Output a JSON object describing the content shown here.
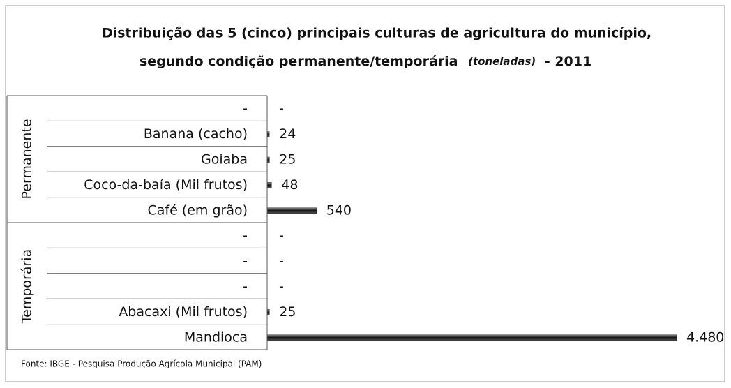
{
  "chart_data": {
    "type": "grouped-bar",
    "title": [
      "Distribuição das 5 (cinco) principais culturas de agricultura do município,",
      "segundo condição permanente/temporária"
    ],
    "unit": "(toneladas)",
    "year_label": "- 2011",
    "color": "#222222",
    "groups": [
      {
        "name": "Permanente",
        "categories": [
          "-",
          "Banana (cacho)",
          "Goiaba",
          "Coco-da-baía (Mil frutos)",
          "Café (em grão)"
        ],
        "values": [
          null,
          24,
          25,
          48,
          540
        ],
        "value_labels": [
          "-",
          "24",
          "25",
          "48",
          "540"
        ]
      },
      {
        "name": "Temporária",
        "categories": [
          "-",
          "-",
          "-",
          "Abacaxi (Mil frutos)",
          "Mandioca"
        ],
        "values": [
          null,
          null,
          null,
          25,
          4480
        ],
        "value_labels": [
          "-",
          "-",
          "-",
          "25",
          "4.480"
        ]
      }
    ],
    "source": "Fonte: IBGE - Pesquisa Produção Agrícola Municipal (PAM)"
  }
}
